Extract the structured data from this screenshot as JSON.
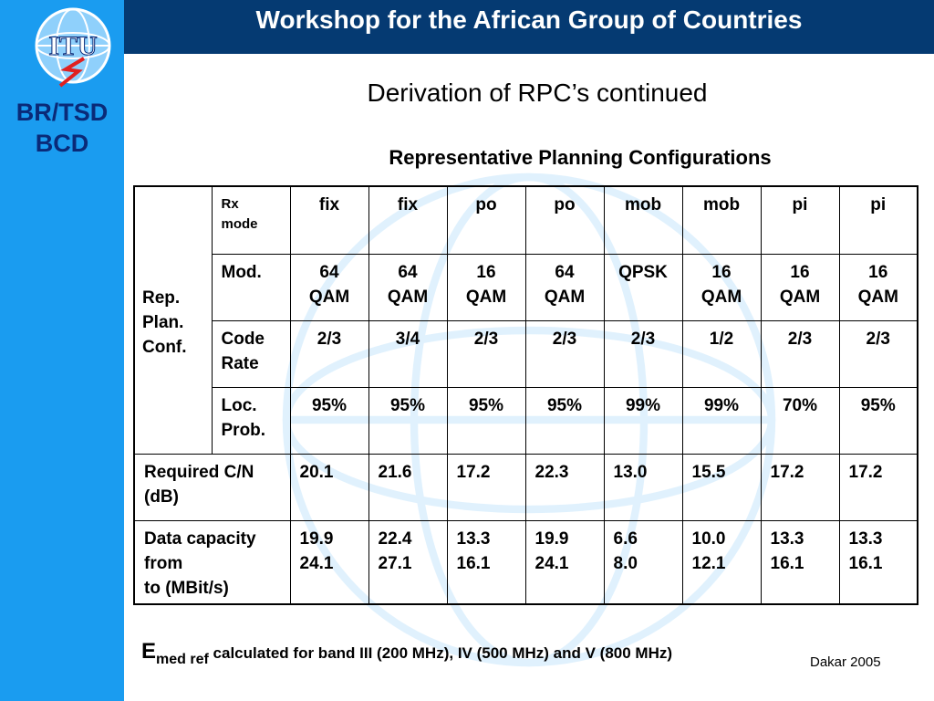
{
  "header": {
    "title": "Workshop for the African Group of Countries"
  },
  "sidebar": {
    "logo_text": "ITU",
    "label_line1": "BR/TSD",
    "label_line2": "BCD"
  },
  "slide": {
    "title": "Derivation of RPC’s continued",
    "table_heading": "Representative Planning Configurations"
  },
  "table": {
    "group_label": [
      "Rep.",
      "Plan.",
      "Conf."
    ],
    "rx_mode_label": [
      "Rx",
      "mode"
    ],
    "rx_modes": [
      "fix",
      "fix",
      "po",
      "po",
      "mob",
      "mob",
      "pi",
      "pi"
    ],
    "mod_label": "Mod.",
    "mods": [
      [
        "64",
        "QAM"
      ],
      [
        "64",
        "QAM"
      ],
      [
        "16",
        "QAM"
      ],
      [
        "64",
        "QAM"
      ],
      [
        "QPSK",
        ""
      ],
      [
        "16",
        "QAM"
      ],
      [
        "16",
        "QAM"
      ],
      [
        "16",
        "QAM"
      ]
    ],
    "code_rate_label": [
      "Code",
      "Rate"
    ],
    "code_rates": [
      "2/3",
      "3/4",
      "2/3",
      "2/3",
      "2/3",
      "1/2",
      "2/3",
      "2/3"
    ],
    "loc_prob_label": [
      "Loc.",
      "Prob."
    ],
    "loc_probs": [
      "95%",
      "95%",
      "95%",
      "95%",
      "99%",
      "99%",
      "70%",
      "95%"
    ],
    "cn_label": [
      "Required C/N",
      "(dB)"
    ],
    "cn_values": [
      "20.1",
      "21.6",
      "17.2",
      "22.3",
      "13.0",
      "15.5",
      "17.2",
      "17.2"
    ],
    "capacity_label": [
      "Data capacity",
      "from",
      "to (MBit/s)"
    ],
    "capacity_from": [
      "19.9",
      "22.4",
      "13.3",
      "19.9",
      "6.6",
      "10.0",
      "13.3",
      "13.3"
    ],
    "capacity_to": [
      "24.1",
      "27.1",
      "16.1",
      "24.1",
      "8.0",
      "12.1",
      "16.1",
      "16.1"
    ]
  },
  "footnote": {
    "e": "E",
    "subscript": "med ref",
    "text": "calculated for band III (200 MHz), IV (500 MHz) and V (800 MHz)"
  },
  "footer": {
    "location_date": "Dakar 2005"
  },
  "colors": {
    "sidebar": "#1a9cf0",
    "header": "#053a72",
    "sidebar_text": "#0a2a78"
  }
}
